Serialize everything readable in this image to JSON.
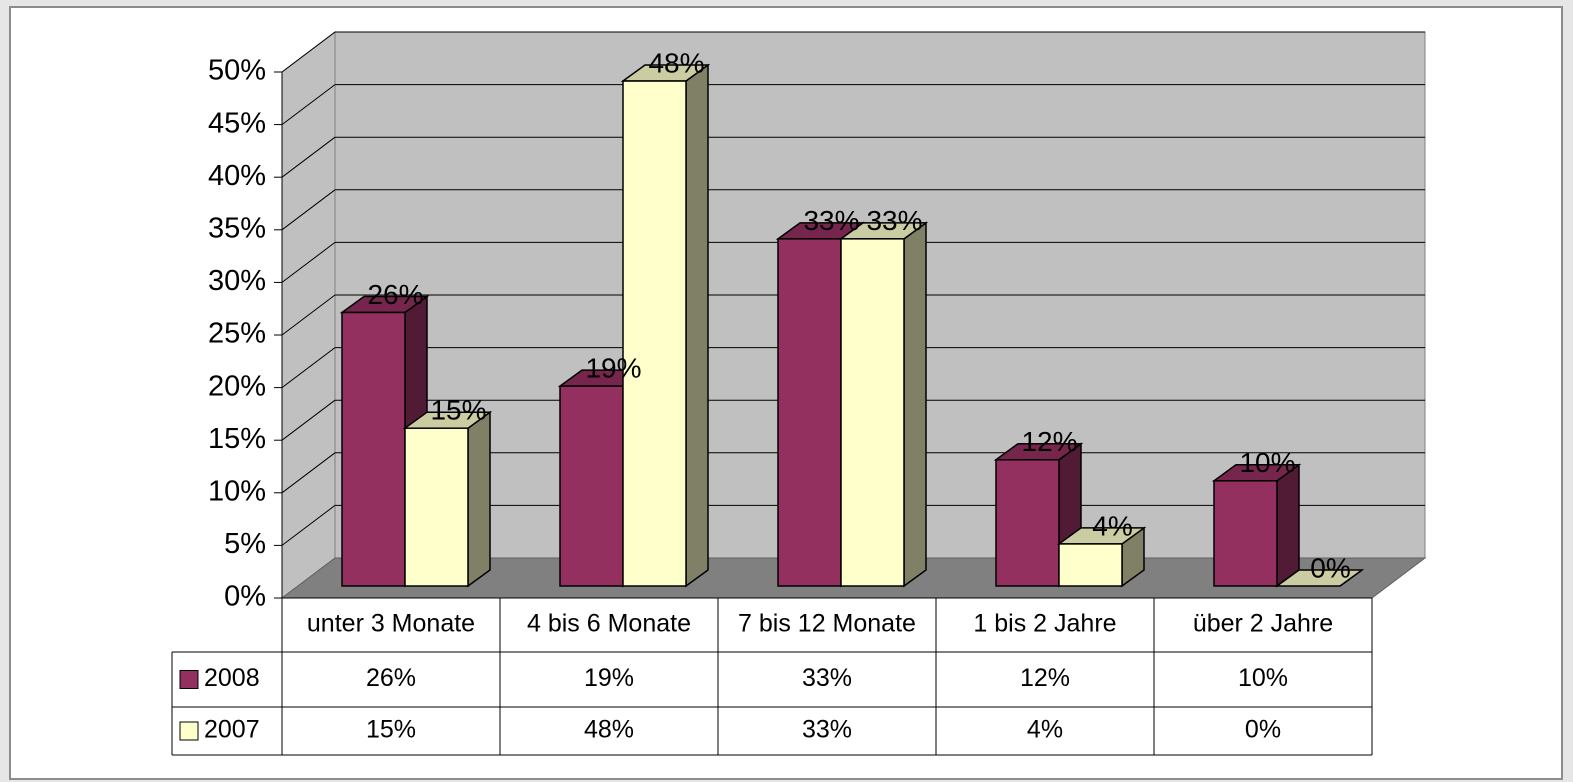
{
  "chart_data": {
    "type": "bar3d",
    "categories": [
      "unter 3 Monate",
      "4 bis 6 Monate",
      "7 bis 12 Monate",
      "1 bis 2 Jahre",
      "über 2 Jahre"
    ],
    "series": [
      {
        "name": "2008",
        "color": "#943060",
        "values": [
          26,
          19,
          33,
          12,
          10
        ],
        "value_labels": [
          "26%",
          "19%",
          "33%",
          "12%",
          "10%"
        ]
      },
      {
        "name": "2007",
        "color": "#ffffcc",
        "values": [
          15,
          48,
          33,
          4,
          0
        ],
        "value_labels": [
          "15%",
          "48%",
          "33%",
          "4%",
          "0%"
        ]
      }
    ],
    "ylim": [
      0,
      50
    ],
    "yticks": [
      {
        "value": 0,
        "label": "0%"
      },
      {
        "value": 5,
        "label": "5%"
      },
      {
        "value": 10,
        "label": "10%"
      },
      {
        "value": 15,
        "label": "15%"
      },
      {
        "value": 20,
        "label": "20%"
      },
      {
        "value": 25,
        "label": "25%"
      },
      {
        "value": 30,
        "label": "30%"
      },
      {
        "value": 35,
        "label": "35%"
      },
      {
        "value": 40,
        "label": "40%"
      },
      {
        "value": 45,
        "label": "45%"
      },
      {
        "value": 50,
        "label": "50%"
      }
    ],
    "grid": true,
    "data_table": true
  }
}
